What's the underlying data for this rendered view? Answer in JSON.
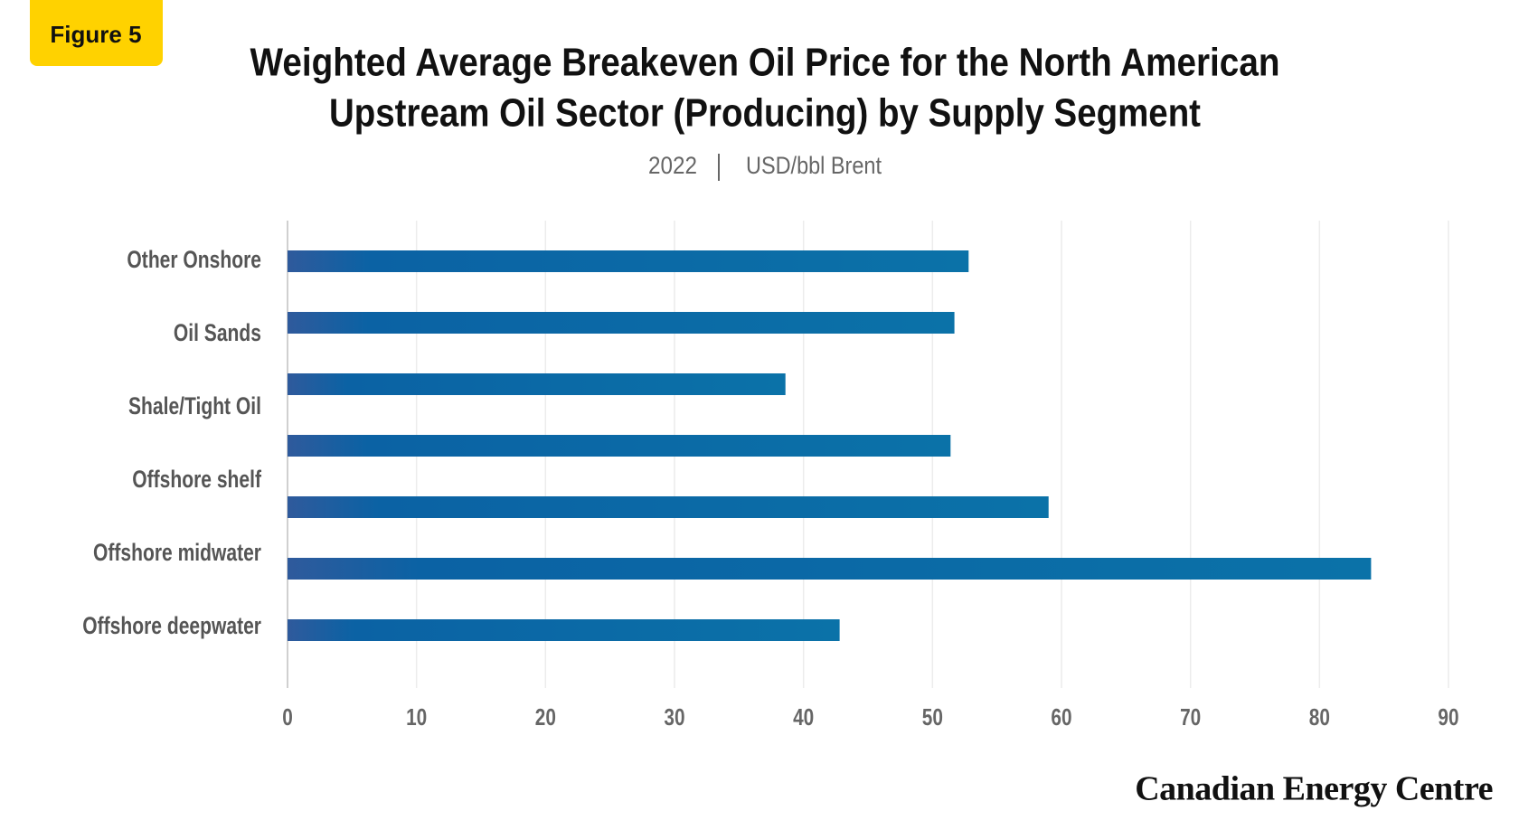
{
  "badge": "Figure 5",
  "chart_data": {
    "type": "bar",
    "orientation": "horizontal",
    "title": [
      "Weighted Average Breakeven Oil Price for the North American",
      "Upstream Oil Sector (Producing) by Supply Segment"
    ],
    "subtitle": [
      "2022",
      "USD/bbl Brent"
    ],
    "categories": [
      "Other Onshore",
      "Oil Sands",
      "Shale/Tight Oil",
      null,
      "Offshore shelf",
      "Offshore midwater",
      "Offshore deepwater"
    ],
    "values": [
      52.8,
      51.7,
      38.6,
      51.4,
      59.0,
      84.0,
      42.8
    ],
    "color": "#0b6fa8",
    "xlim": [
      0,
      90
    ],
    "xticks": [
      0,
      10,
      20,
      30,
      40,
      50,
      60,
      70,
      80,
      90
    ],
    "grid": true
  },
  "footer": "Canadian Energy Centre"
}
